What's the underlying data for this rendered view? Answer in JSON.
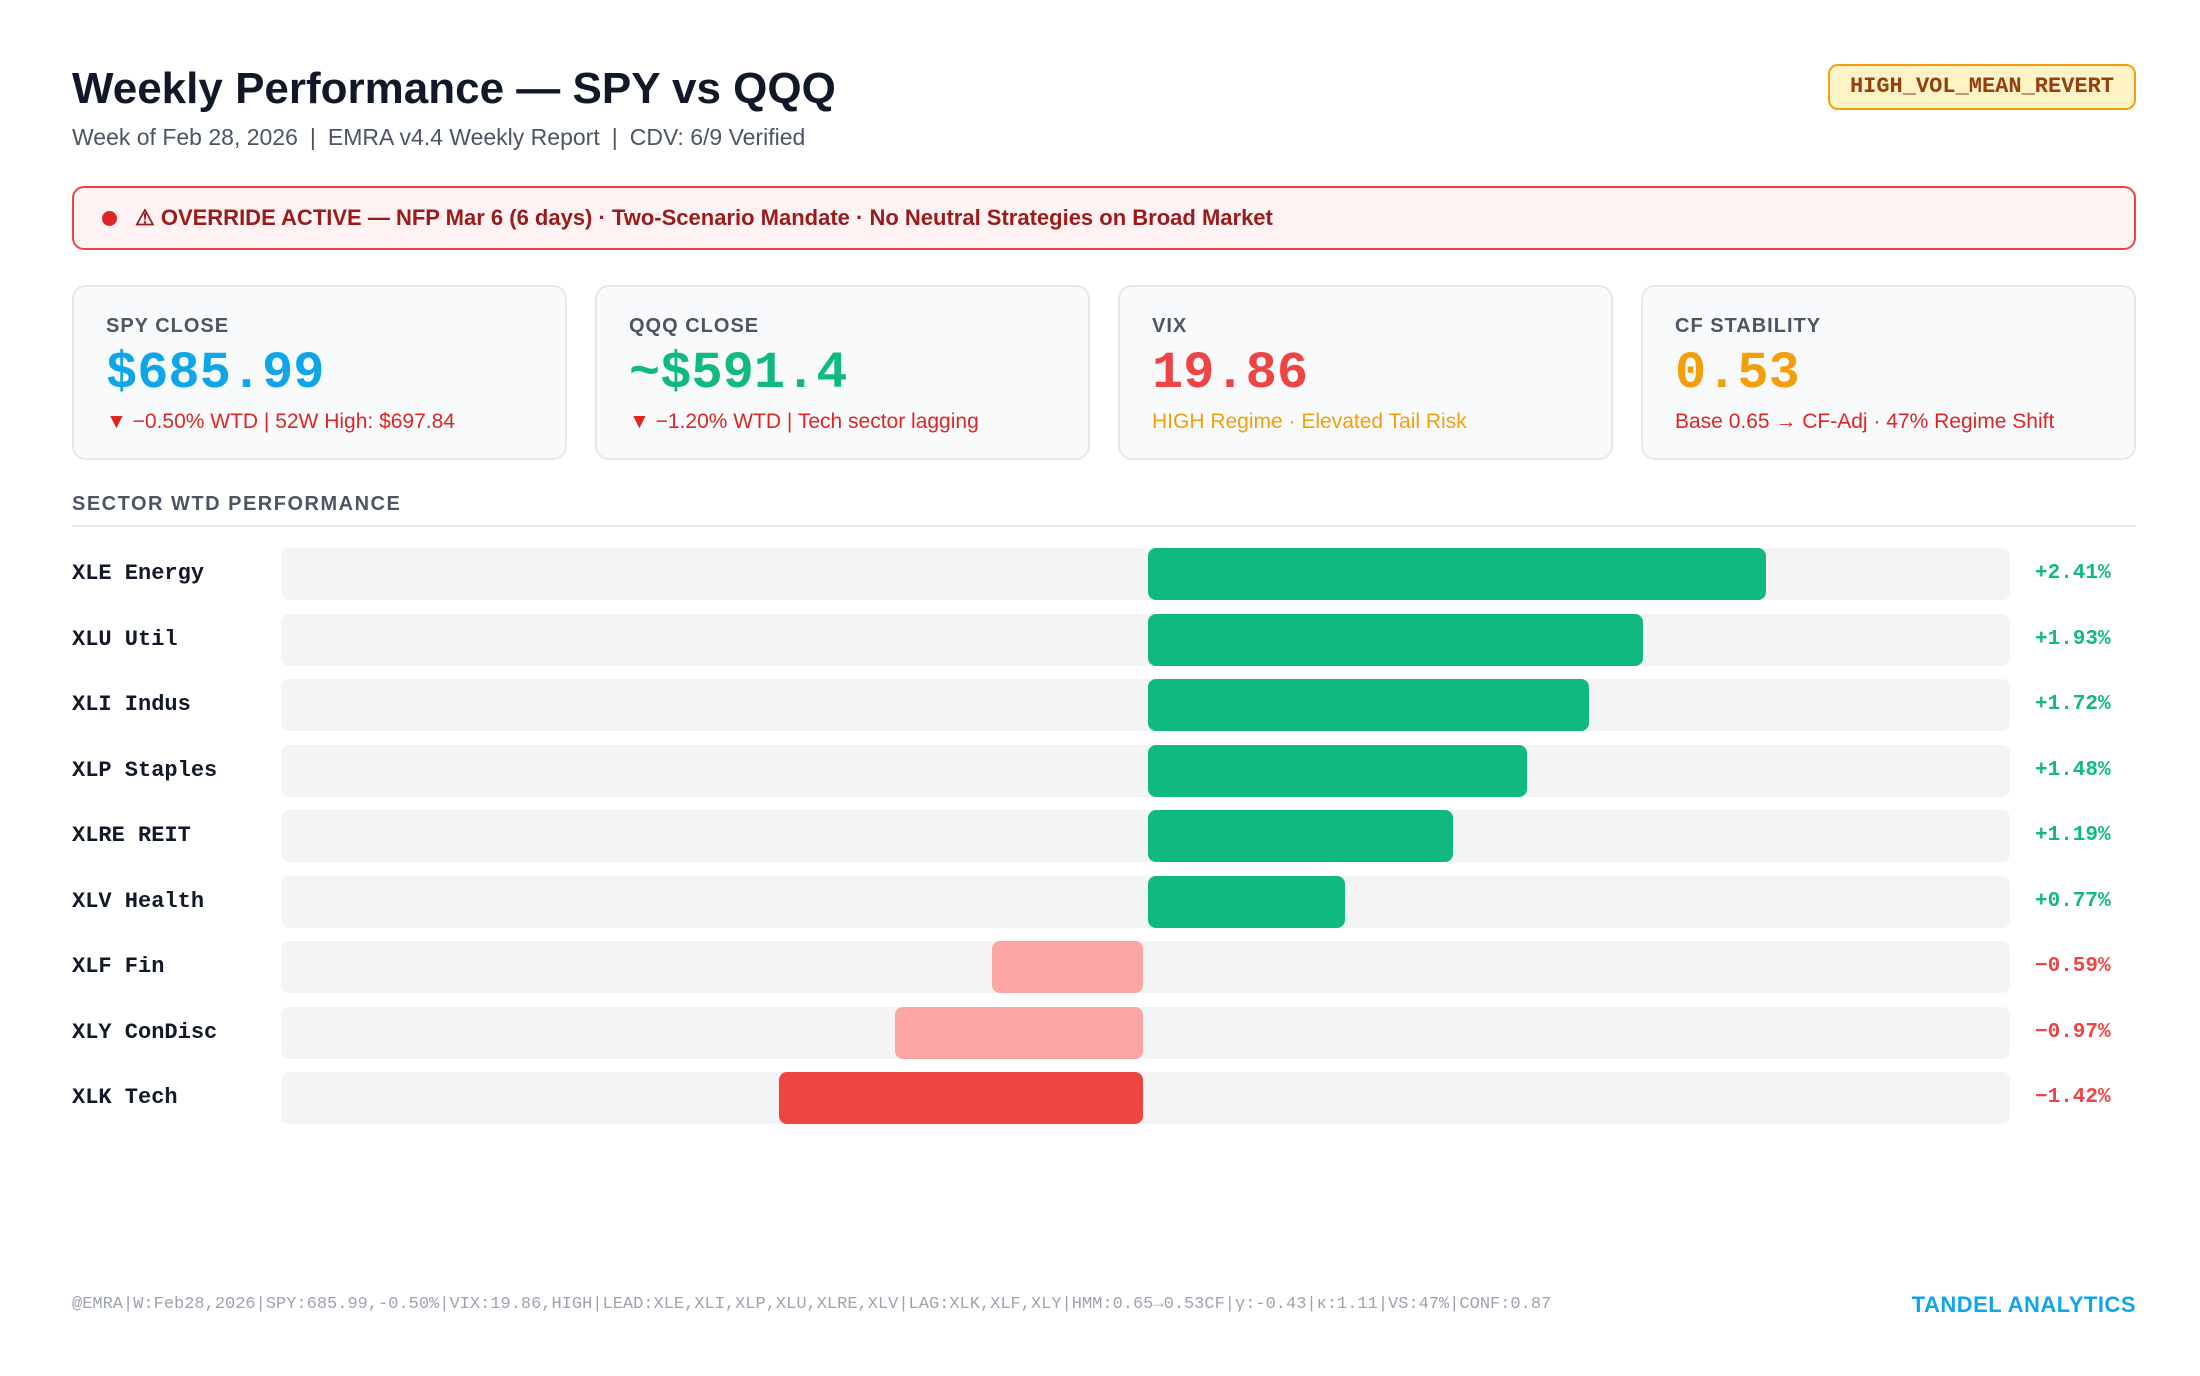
{
  "header": {
    "title": "Weekly Performance — SPY vs QQQ",
    "subtitle_week": "Week of Feb 28, 2026",
    "subtitle_report": "EMRA v4.4 Weekly Report",
    "subtitle_cdv": "CDV: 6/9 Verified",
    "separator": "|",
    "regime_badge": "HIGH_VOL_MEAN_REVERT"
  },
  "alert": {
    "text": "⚠ OVERRIDE ACTIVE — NFP Mar 6 (6 days) · Two-Scenario Mandate · No Neutral Strategies on Broad Market"
  },
  "cards": [
    {
      "label": "SPY CLOSE",
      "value": "$685.99",
      "sub": "▼ −0.50% WTD  |  52W High: $697.84",
      "value_color": "#0ea5e9",
      "sub_color": "#dc2626"
    },
    {
      "label": "QQQ CLOSE",
      "value": "~$591.4",
      "sub": "▼ −1.20% WTD  |  Tech sector lagging",
      "value_color": "#10b981",
      "sub_color": "#dc2626"
    },
    {
      "label": "VIX",
      "value": "19.86",
      "sub": "HIGH Regime · Elevated Tail Risk",
      "value_color": "#ef4444",
      "sub_color": "#f59e0b"
    },
    {
      "label": "CF STABILITY",
      "value": "0.53",
      "sub": "Base 0.65 → CF-Adj · 47% Regime Shift",
      "value_color": "#f59e0b",
      "sub_color": "#dc2626"
    }
  ],
  "section_title": "SECTOR WTD PERFORMANCE",
  "chart_data": {
    "type": "bar",
    "orientation": "horizontal",
    "categories": [
      "XLE Energy",
      "XLU Util",
      "XLI Indus",
      "XLP Staples",
      "XLRE REIT",
      "XLV Health",
      "XLF Fin",
      "XLY ConDisc",
      "XLK Tech"
    ],
    "values": [
      2.41,
      1.93,
      1.72,
      1.48,
      1.19,
      0.77,
      -0.59,
      -0.97,
      -1.42
    ],
    "value_labels": [
      "+2.41%",
      "+1.93%",
      "+1.72%",
      "+1.48%",
      "+1.19%",
      "+0.77%",
      "−0.59%",
      "−0.97%",
      "−1.42%"
    ],
    "xlim": [
      -3.37,
      3.37
    ],
    "colors": {
      "positive": "#10b981",
      "mild_negative": "#fca5a5",
      "strong_negative": "#ef4444",
      "positive_label": "#10b981",
      "negative_label": "#ef4444",
      "track": "#f3f4f6"
    }
  },
  "footer": {
    "code": "@EMRA|W:Feb28,2026|SPY:685.99,-0.50%|VIX:19.86,HIGH|LEAD:XLE,XLI,XLP,XLU,XLRE,XLV|LAG:XLK,XLF,XLY|HMM:0.65→0.53CF|γ:-0.43|κ:1.11|VS:47%|CONF:0.87",
    "brand": "TANDEL ANALYTICS"
  }
}
